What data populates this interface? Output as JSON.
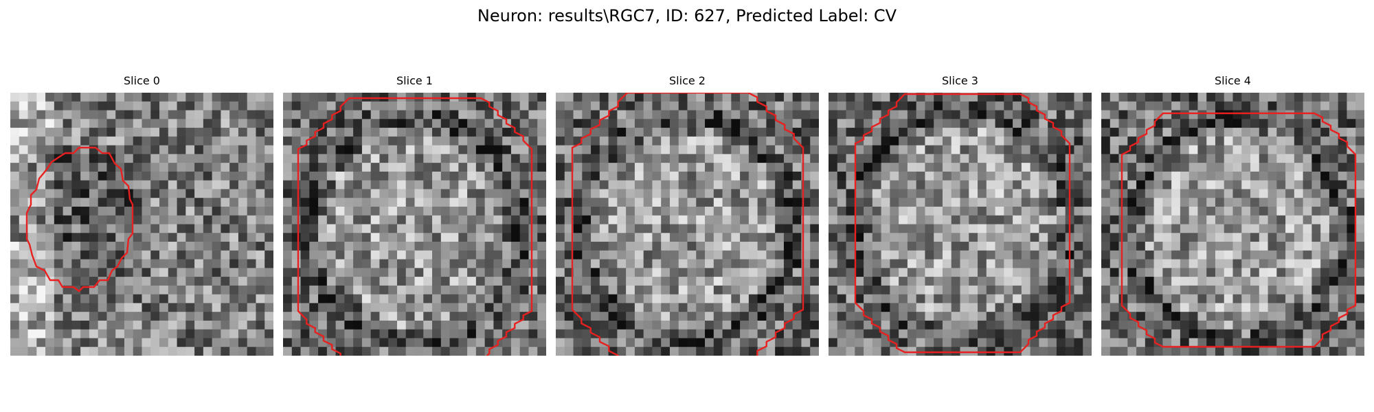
{
  "figure": {
    "title": "Neuron: results\\RGC7, ID: 627, Predicted Label: CV"
  },
  "colors": {
    "contour": "#e8201f",
    "image_colormap": "gray"
  },
  "panels": [
    {
      "title": "Slice 0",
      "image": "grayscale-noise-patch",
      "contour_shape": "oval-polygon"
    },
    {
      "title": "Slice 1",
      "image": "grayscale-noise-patch",
      "contour_shape": "octagon-clipped-bottom"
    },
    {
      "title": "Slice 2",
      "image": "grayscale-noise-patch",
      "contour_shape": "octagon-clipped-top-bottom"
    },
    {
      "title": "Slice 3",
      "image": "grayscale-noise-patch",
      "contour_shape": "octagon-clipped-top"
    },
    {
      "title": "Slice 4",
      "image": "grayscale-noise-patch",
      "contour_shape": "octagon"
    }
  ]
}
